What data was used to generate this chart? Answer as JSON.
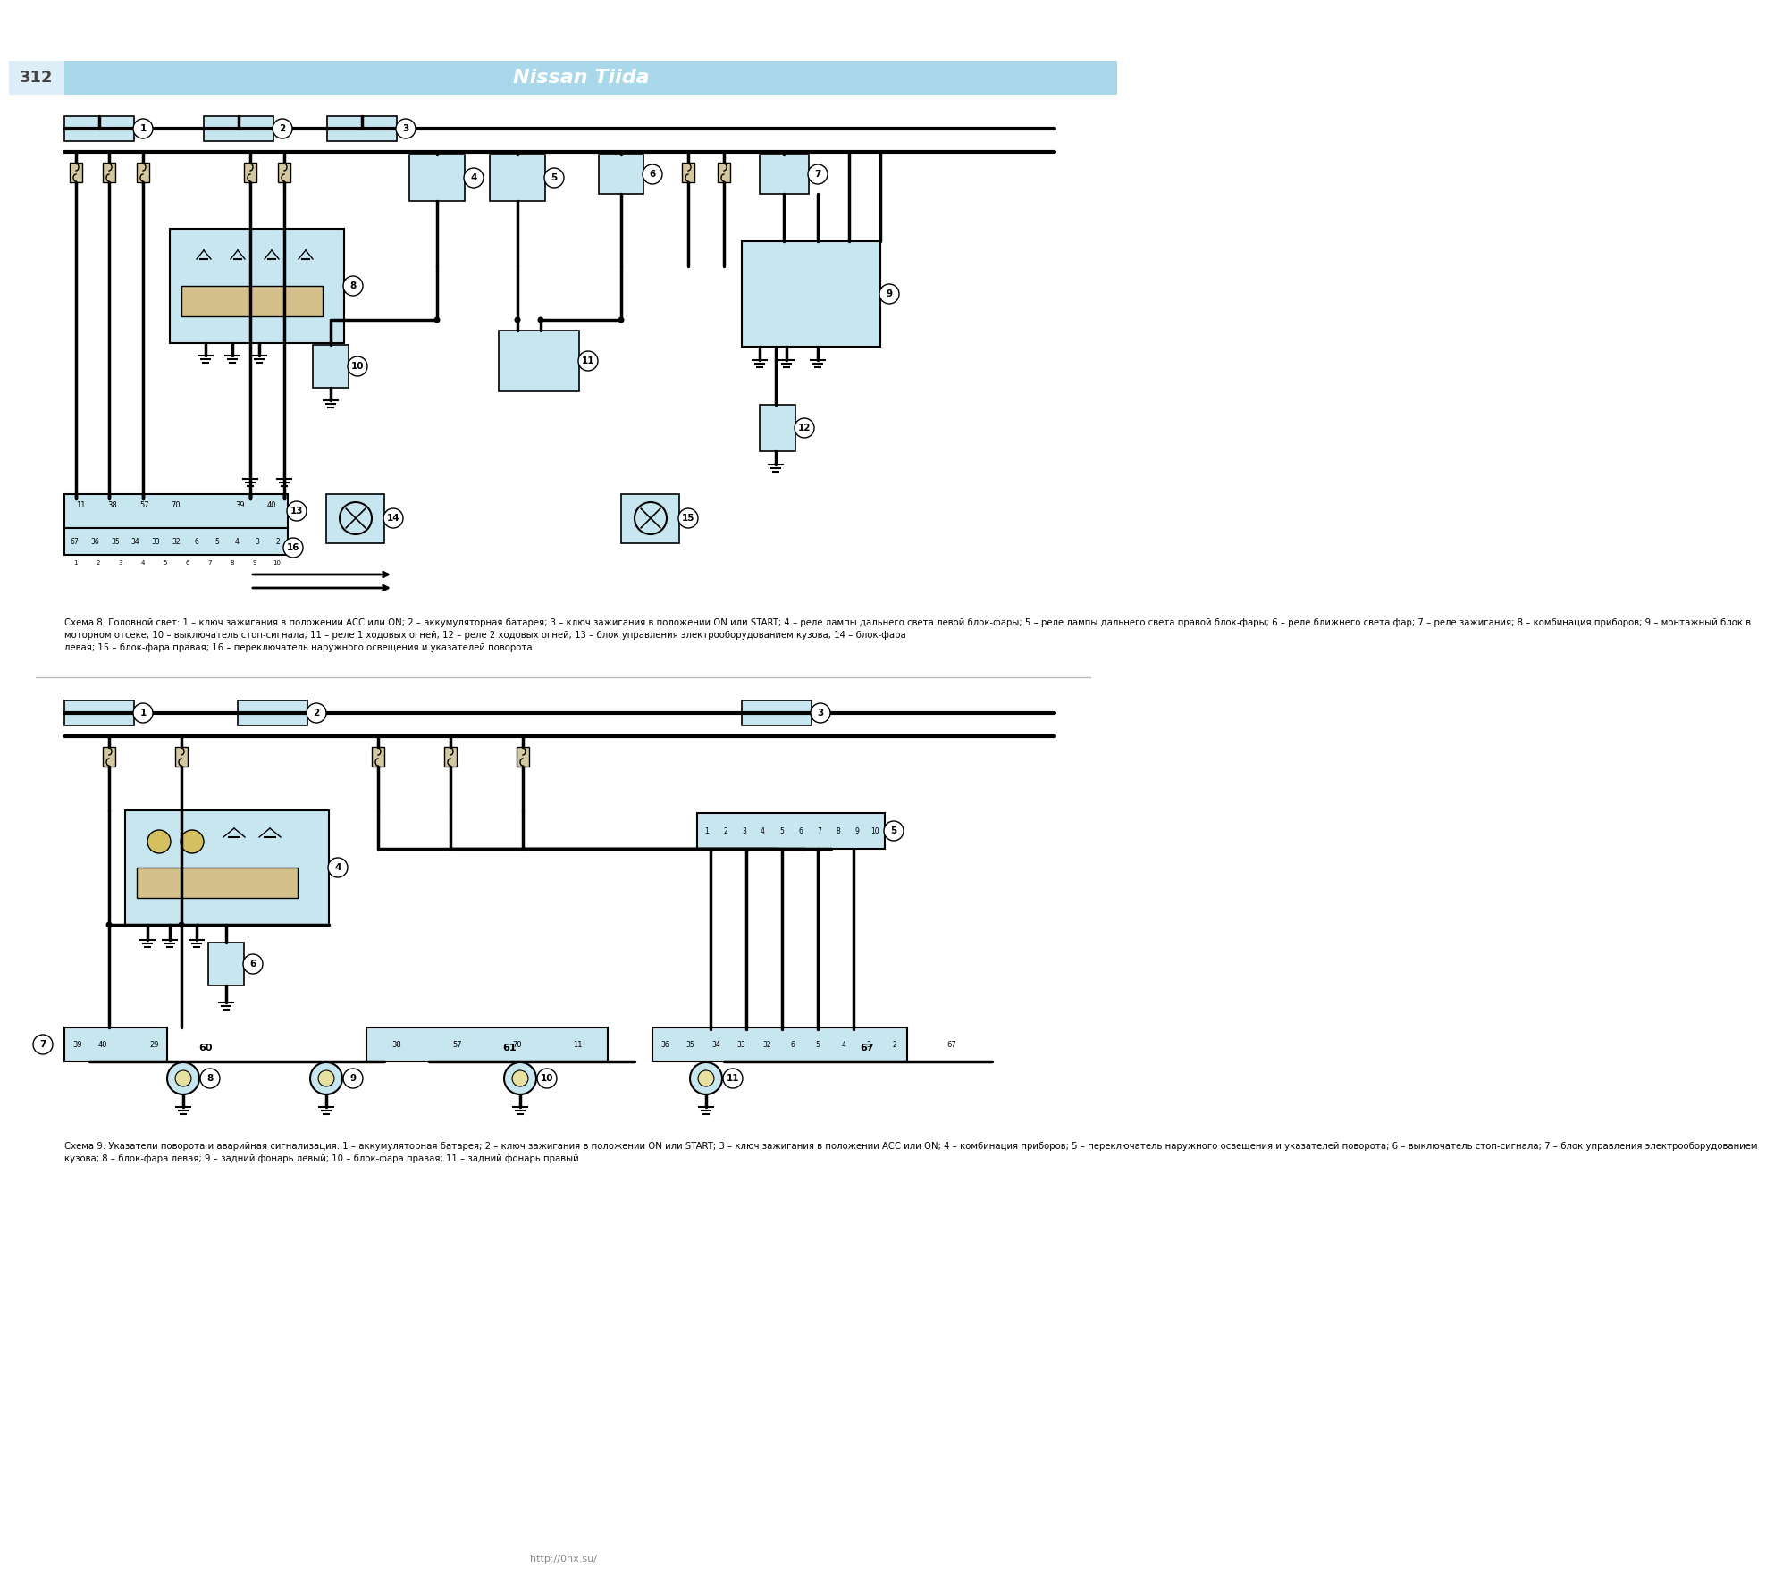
{
  "page_number": "312",
  "title": "Nissan Tiida",
  "header_bg": "#a8d8ea",
  "component_fill": "#c8e6f0",
  "relay_fill": "#d4c08a",
  "wire_color": "#000000",
  "fig_bg": "#ffffff",
  "caption1_lines": [
    "Схема 8. Головной свет: 1 – ключ зажигания в положении ACC или ON; 2 – аккумуляторная батарея; 3 – ключ зажигания в положении ON или START; 4 – реле лампы дальнего света левой блок-фары; 5 – реле лампы дальнего света правой блок-фары; 6 – реле ближнего света фар; 7 – реле зажигания; 8 – комбинация приборов; 9 – монтажный блок в",
    "моторном отсеке; 10 – выключатель стоп-сигнала; 11 – реле 1 ходовых огней; 12 – реле 2 ходовых огней; 13 – блок управления электрооборудованием кузова; 14 – блок-фара",
    "левая; 15 – блок-фара правая; 16 – переключатель наружного освещения и указателей поворота"
  ],
  "caption2_lines": [
    "Схема 9. Указатели поворота и аварийная сигнализация: 1 – аккумуляторная батарея; 2 – ключ зажигания в положении ON или START; 3 – ключ зажигания в положении ACC или ON; 4 – комбинация приборов; 5 – переключатель наружного освещения и указателей поворота; 6 – выключатель стоп-сигнала; 7 – блок управления электрооборудованием",
    "кузова; 8 – блок-фара левая; 9 – задний фонарь левый; 10 – блок-фара правая; 11 – задний фонарь правый"
  ],
  "url": "http://0nx.su/"
}
